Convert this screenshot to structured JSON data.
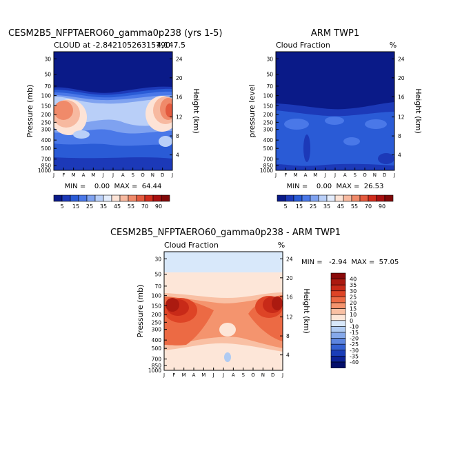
{
  "chart_data": [
    {
      "type": "heatmap",
      "title": "CESM2B5_NFPTAERO60_gamma0p238 (yrs 1-5)",
      "subtitle_left": "CLOUD at -2.84210526315790",
      "subtitle_right": "4,147.5",
      "xlabel": "",
      "ylabel": "Pressure (mb)",
      "right_axis_label": "Height (km)",
      "x_ticks": [
        "J",
        "F",
        "M",
        "A",
        "M",
        "J",
        "J",
        "A",
        "S",
        "O",
        "N",
        "D",
        "J"
      ],
      "y_ticks": [
        "30",
        "50",
        "70",
        "100",
        "150",
        "200",
        "250",
        "300",
        "400",
        "500",
        "700",
        "850",
        "1000"
      ],
      "right_ticks": [
        "24",
        "20",
        "16",
        "12",
        "8",
        "4"
      ],
      "stats": "MIN =    0.00  MAX =  64.44",
      "colorbar_labels": [
        "5",
        "15",
        "25",
        "35",
        "45",
        "55",
        "70",
        "90"
      ]
    },
    {
      "type": "heatmap",
      "title": "ARM TWP1",
      "subtitle_left": "Cloud Fraction",
      "subtitle_right": "%",
      "ylabel": "pressure level",
      "right_axis_label": "Height (km)",
      "x_ticks": [
        "J",
        "F",
        "M",
        "A",
        "M",
        "J",
        "J",
        "A",
        "S",
        "O",
        "N",
        "D",
        "J"
      ],
      "y_ticks": [
        "30",
        "50",
        "70",
        "100",
        "150",
        "200",
        "250",
        "300",
        "400",
        "500",
        "700",
        "850",
        "1000"
      ],
      "right_ticks": [
        "24",
        "20",
        "16",
        "12",
        "8",
        "4"
      ],
      "stats": "MIN =    0.00  MAX =  26.53",
      "colorbar_labels": [
        "5",
        "15",
        "25",
        "35",
        "45",
        "55",
        "70",
        "90"
      ]
    },
    {
      "type": "heatmap",
      "title": "CESM2B5_NFPTAERO60_gamma0p238 - ARM TWP1",
      "subtitle_left": "Cloud Fraction",
      "subtitle_right": "%",
      "ylabel": "Pressure (mb)",
      "right_axis_label": "Height (km)",
      "x_ticks": [
        "J",
        "F",
        "M",
        "A",
        "M",
        "J",
        "J",
        "A",
        "S",
        "O",
        "N",
        "D",
        "J"
      ],
      "y_ticks": [
        "30",
        "50",
        "70",
        "100",
        "150",
        "200",
        "250",
        "300",
        "400",
        "500",
        "700",
        "850",
        "1000"
      ],
      "right_ticks": [
        "24",
        "20",
        "16",
        "12",
        "8",
        "4"
      ],
      "stats": "MIN =   -2.94  MAX =  57.05",
      "colorbar_labels": [
        "40",
        "35",
        "30",
        "25",
        "20",
        "15",
        "10",
        "0",
        "-10",
        "-15",
        "-20",
        "-25",
        "-30",
        "-35",
        "-40"
      ]
    }
  ],
  "colors": {
    "seq_colorbar": [
      "#0a1a88",
      "#1c39b8",
      "#2a5bd6",
      "#4a78e8",
      "#7fa2f0",
      "#b9cff8",
      "#e3ecfc",
      "#fde3d6",
      "#f7b9a0",
      "#f08a6a",
      "#e45a3e",
      "#d02c1c",
      "#a81010",
      "#800808"
    ],
    "diff_colorbar": [
      "#8a0a0a",
      "#ab1a10",
      "#c82a18",
      "#de4426",
      "#ec6a44",
      "#f4946e",
      "#f9c0a4",
      "#fde6d8",
      "#d8e8fa",
      "#b0cbf2",
      "#86a9ea",
      "#5c85e0",
      "#3461d2",
      "#1a3db8",
      "#0c2296",
      "#040e6a"
    ]
  }
}
